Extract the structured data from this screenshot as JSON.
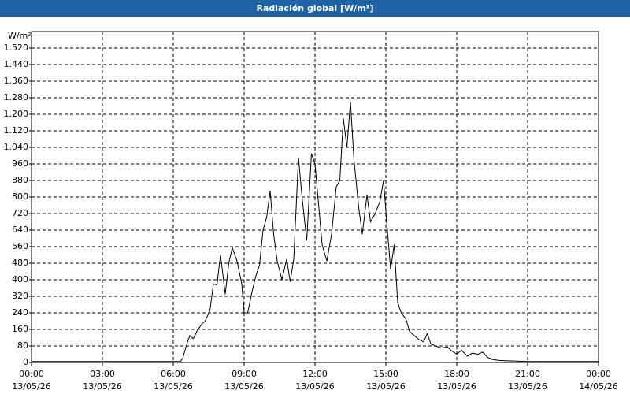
{
  "chart_data": {
    "type": "line",
    "title": "Radiación global [W/m²]",
    "y_label": "W/m²",
    "xlim": [
      0,
      24
    ],
    "ylim": [
      0,
      1600
    ],
    "xticks": [
      {
        "value": 0,
        "label": "00:00"
      },
      {
        "value": 3,
        "label": "03:00"
      },
      {
        "value": 6,
        "label": "06:00"
      },
      {
        "value": 9,
        "label": "09:00"
      },
      {
        "value": 12,
        "label": "12:00"
      },
      {
        "value": 15,
        "label": "15:00"
      },
      {
        "value": 18,
        "label": "18:00"
      },
      {
        "value": 21,
        "label": "21:00"
      },
      {
        "value": 24,
        "label": "00:00"
      }
    ],
    "xtick_dates": [
      "13/05/26",
      "13/05/26",
      "13/05/26",
      "13/05/26",
      "13/05/26",
      "13/05/26",
      "13/05/26",
      "13/05/26",
      "14/05/26"
    ],
    "yticks": [
      0,
      80,
      160,
      240,
      320,
      400,
      480,
      560,
      640,
      720,
      800,
      880,
      960,
      {
        "value": 1040,
        "label": "1.040"
      },
      {
        "value": 1120,
        "label": "1.120"
      },
      {
        "value": 1200,
        "label": "1.200"
      },
      {
        "value": 1280,
        "label": "1.280"
      },
      {
        "value": 1360,
        "label": "1.360"
      },
      {
        "value": 1440,
        "label": "1.440"
      },
      {
        "value": 1520,
        "label": "1.520"
      }
    ],
    "grid": true,
    "series": [
      {
        "name": "Radiación global",
        "color": "#000000",
        "x": [
          0,
          6,
          6.3,
          6.4,
          6.55,
          6.7,
          6.85,
          7.0,
          7.2,
          7.35,
          7.55,
          7.7,
          7.85,
          8.0,
          8.2,
          8.35,
          8.5,
          8.7,
          8.9,
          9.0,
          9.15,
          9.35,
          9.5,
          9.65,
          9.8,
          9.95,
          10.1,
          10.25,
          10.4,
          10.6,
          10.8,
          10.95,
          11.1,
          11.3,
          11.45,
          11.65,
          11.85,
          12.0,
          12.1,
          12.3,
          12.5,
          12.7,
          12.9,
          13.05,
          13.2,
          13.35,
          13.5,
          13.65,
          13.85,
          14.0,
          14.2,
          14.35,
          14.55,
          14.75,
          14.9,
          15.05,
          15.2,
          15.35,
          15.5,
          15.65,
          15.85,
          16.0,
          16.2,
          16.4,
          16.6,
          16.75,
          16.9,
          17.1,
          17.35,
          17.6,
          17.8,
          18.0,
          18.2,
          18.45,
          18.65,
          18.9,
          19.1,
          19.3,
          19.5,
          19.8,
          20.2,
          21,
          24
        ],
        "values": [
          5,
          5,
          5,
          20,
          80,
          130,
          115,
          150,
          185,
          200,
          250,
          380,
          375,
          520,
          330,
          480,
          555,
          490,
          380,
          240,
          240,
          350,
          420,
          470,
          640,
          700,
          830,
          620,
          490,
          400,
          500,
          390,
          500,
          990,
          800,
          590,
          1010,
          960,
          830,
          570,
          490,
          620,
          850,
          880,
          1180,
          1040,
          1260,
          980,
          750,
          620,
          810,
          680,
          720,
          780,
          880,
          660,
          450,
          570,
          290,
          240,
          210,
          150,
          130,
          110,
          100,
          140,
          90,
          80,
          70,
          75,
          55,
          40,
          60,
          30,
          45,
          40,
          50,
          25,
          15,
          10,
          8,
          5,
          5
        ]
      }
    ]
  }
}
